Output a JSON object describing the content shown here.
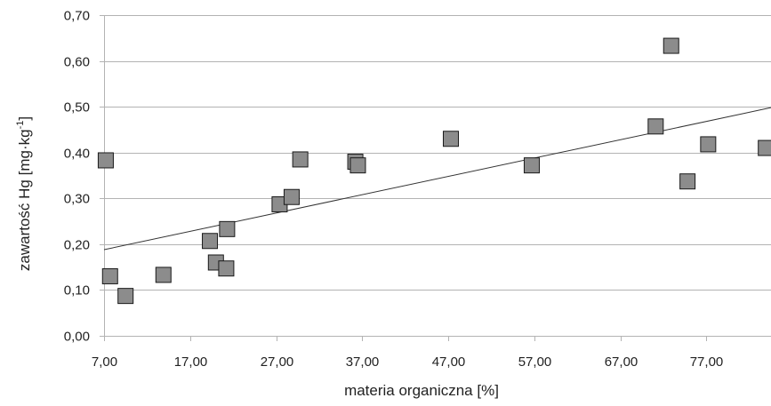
{
  "chart_data": {
    "type": "scatter",
    "title": "",
    "xlabel": "materia organiczna [%]",
    "ylabel": {
      "main": "zawartość Hg [mg·kg",
      "superscript": "-1",
      "suffix": "]"
    },
    "xlim": [
      7,
      84.5
    ],
    "ylim": [
      0,
      0.7
    ],
    "x_ticks": [
      7,
      17,
      27,
      37,
      47,
      57,
      67,
      77
    ],
    "x_tick_labels": [
      "7,00",
      "17,00",
      "27,00",
      "37,00",
      "47,00",
      "57,00",
      "67,00",
      "77,00"
    ],
    "y_ticks": [
      0,
      0.1,
      0.2,
      0.3,
      0.4,
      0.5,
      0.6,
      0.7
    ],
    "y_tick_labels": [
      "0,00",
      "0,10",
      "0,20",
      "0,30",
      "0,40",
      "0,50",
      "0,60",
      "0,70"
    ],
    "grid": true,
    "legend": "none",
    "points": [
      {
        "x": 7.2,
        "y": 0.383
      },
      {
        "x": 7.7,
        "y": 0.13
      },
      {
        "x": 9.5,
        "y": 0.087
      },
      {
        "x": 13.9,
        "y": 0.133
      },
      {
        "x": 19.3,
        "y": 0.207
      },
      {
        "x": 20.0,
        "y": 0.16
      },
      {
        "x": 21.2,
        "y": 0.147
      },
      {
        "x": 21.3,
        "y": 0.233
      },
      {
        "x": 27.4,
        "y": 0.287
      },
      {
        "x": 28.8,
        "y": 0.303
      },
      {
        "x": 29.8,
        "y": 0.385
      },
      {
        "x": 36.2,
        "y": 0.38
      },
      {
        "x": 36.5,
        "y": 0.372
      },
      {
        "x": 47.3,
        "y": 0.43
      },
      {
        "x": 56.7,
        "y": 0.372
      },
      {
        "x": 71.1,
        "y": 0.457
      },
      {
        "x": 72.9,
        "y": 0.633
      },
      {
        "x": 74.8,
        "y": 0.337
      },
      {
        "x": 77.2,
        "y": 0.418
      },
      {
        "x": 83.9,
        "y": 0.41
      }
    ],
    "trendline": {
      "x": [
        7,
        84.5
      ],
      "y": [
        0.188,
        0.498
      ]
    },
    "colors": {
      "marker_fill": "#8c8c8c",
      "marker_stroke": "#1a1a1a",
      "gridline": "#b3b3b3",
      "axis": "#b3b3b3",
      "trendline": "#333333",
      "text": "#222222"
    }
  }
}
